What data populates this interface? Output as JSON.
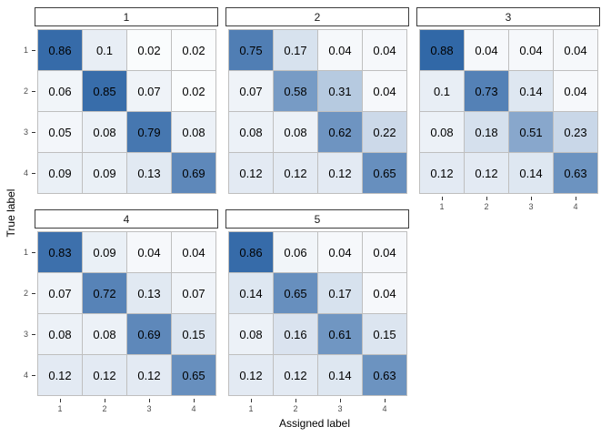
{
  "figure": {
    "y_axis_title": "True label",
    "x_axis_title": "Assigned label",
    "x_tick_labels": [
      "1",
      "2",
      "3",
      "4"
    ],
    "y_tick_labels": [
      "1",
      "2",
      "3",
      "4"
    ],
    "colors": {
      "background": "#FFFFFF",
      "gradient_low": "#FFFFFF",
      "gradient_high": "#15539B",
      "cell_border": "#BFBFBF",
      "strip_border": "#3C3C3C",
      "strip_background": "#FFFFFF",
      "tick_label": "#4D4D4D",
      "cell_text": "#000000",
      "axis_title": "#000000"
    }
  },
  "chart_data": {
    "type": "heatmap",
    "title": "",
    "xlabel": "Assigned label",
    "ylabel": "True label",
    "x_categories": [
      "1",
      "2",
      "3",
      "4"
    ],
    "y_categories": [
      "1",
      "2",
      "3",
      "4"
    ],
    "value_range": [
      0,
      1
    ],
    "legend": "none",
    "grid": "off",
    "layout": "facet_wrap 3 columns x 2 rows, facet 6 empty",
    "facets": [
      {
        "label": "1",
        "row": 0,
        "col": 0,
        "show_y_axis": true,
        "show_x_axis": false,
        "values": [
          [
            0.86,
            0.1,
            0.02,
            0.02
          ],
          [
            0.06,
            0.85,
            0.07,
            0.02
          ],
          [
            0.05,
            0.08,
            0.79,
            0.08
          ],
          [
            0.09,
            0.09,
            0.13,
            0.69
          ]
        ]
      },
      {
        "label": "2",
        "row": 0,
        "col": 1,
        "show_y_axis": false,
        "show_x_axis": false,
        "values": [
          [
            0.75,
            0.17,
            0.04,
            0.04
          ],
          [
            0.07,
            0.58,
            0.31,
            0.04
          ],
          [
            0.08,
            0.08,
            0.62,
            0.22
          ],
          [
            0.12,
            0.12,
            0.12,
            0.65
          ]
        ]
      },
      {
        "label": "3",
        "row": 0,
        "col": 2,
        "show_y_axis": false,
        "show_x_axis": true,
        "values": [
          [
            0.88,
            0.04,
            0.04,
            0.04
          ],
          [
            0.1,
            0.73,
            0.14,
            0.04
          ],
          [
            0.08,
            0.18,
            0.51,
            0.23
          ],
          [
            0.12,
            0.12,
            0.14,
            0.63
          ]
        ]
      },
      {
        "label": "4",
        "row": 1,
        "col": 0,
        "show_y_axis": true,
        "show_x_axis": true,
        "values": [
          [
            0.83,
            0.09,
            0.04,
            0.04
          ],
          [
            0.07,
            0.72,
            0.13,
            0.07
          ],
          [
            0.08,
            0.08,
            0.69,
            0.15
          ],
          [
            0.12,
            0.12,
            0.12,
            0.65
          ]
        ]
      },
      {
        "label": "5",
        "row": 1,
        "col": 1,
        "show_y_axis": false,
        "show_x_axis": true,
        "values": [
          [
            0.86,
            0.06,
            0.04,
            0.04
          ],
          [
            0.14,
            0.65,
            0.17,
            0.04
          ],
          [
            0.08,
            0.16,
            0.61,
            0.15
          ],
          [
            0.12,
            0.12,
            0.14,
            0.63
          ]
        ]
      }
    ]
  }
}
